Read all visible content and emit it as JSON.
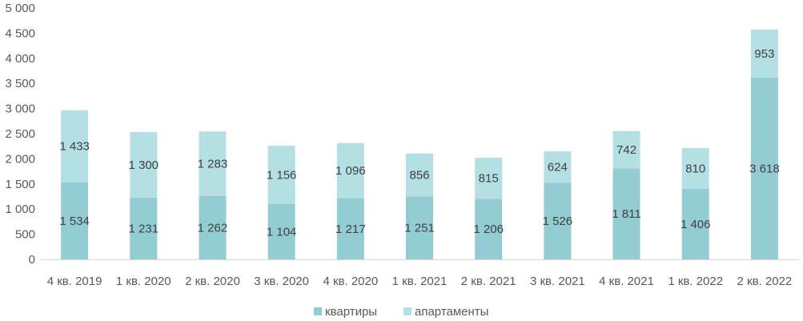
{
  "chart_data": {
    "type": "bar",
    "stacked": true,
    "categories": [
      "4 кв. 2019",
      "1 кв. 2020",
      "2 кв. 2020",
      "3 кв. 2020",
      "4 кв. 2020",
      "1 кв. 2021",
      "2 кв. 2021",
      "3 кв. 2021",
      "4 кв. 2021",
      "1 кв. 2022",
      "2 кв. 2022"
    ],
    "series": [
      {
        "name": "квартиры",
        "color": "#93cdd3",
        "values": [
          1534,
          1231,
          1262,
          1104,
          1217,
          1251,
          1206,
          1526,
          1811,
          1406,
          3618
        ],
        "labels": [
          "1 534",
          "1 231",
          "1 262",
          "1 104",
          "1 217",
          "1 251",
          "1 206",
          "1 526",
          "1 811",
          "1 406",
          "3 618"
        ]
      },
      {
        "name": "апартаменты",
        "color": "#b4dfe3",
        "values": [
          1433,
          1300,
          1283,
          1156,
          1096,
          856,
          815,
          624,
          742,
          810,
          953
        ],
        "labels": [
          "1 433",
          "1 300",
          "1 283",
          "1 156",
          "1 096",
          "856",
          "815",
          "624",
          "742",
          "810",
          "953"
        ]
      }
    ],
    "ylim": [
      0,
      5000
    ],
    "yticks": [
      0,
      500,
      1000,
      1500,
      2000,
      2500,
      3000,
      3500,
      4000,
      4500,
      5000
    ],
    "ytick_labels": [
      "0",
      "500",
      "1 000",
      "1 500",
      "2 000",
      "2 500",
      "3 000",
      "3 500",
      "4 000",
      "4 500",
      "5 000"
    ],
    "grid": false,
    "legend": "bottom",
    "title": "",
    "xlabel": "",
    "ylabel": ""
  }
}
